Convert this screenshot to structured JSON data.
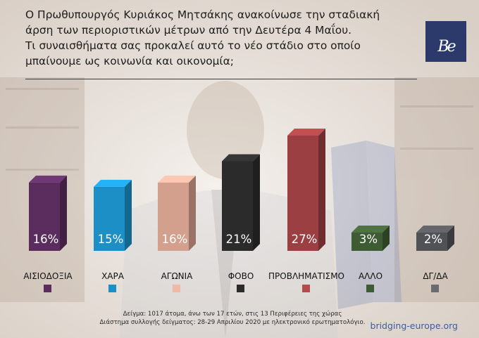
{
  "title_lines": [
    "Ο Πρωθυπουργός Κυριάκος Μητσάκης ανακοίνωσε την σταδιακή",
    "άρση των περιοριστικών μέτρων από την Δευτέρα 4 Μαΐου.",
    "Τι συναισθήματα σας προκαλεί αυτό το νέο στάδιο στο οποίο",
    "μπαίνουμε ως κοινωνία και οικονομία;"
  ],
  "logo_text": "Be",
  "footnote": {
    "line1": "Δείγμα: 1017 άτομα, άνω των 17 ετών, στις 13 Περιφέρειες της χώρας",
    "line2": "Διάστημα συλλογής δείγματος: 28-29 Απριλίου 2020 με ηλεκτρονικό ερωτηματολόγιο."
  },
  "site": "bridging-europe.org",
  "chart_data": {
    "type": "bar",
    "categories": [
      "ΑΙΣΙΟΔΟΞΙΑ",
      "ΧΑΡΑ",
      "ΑΓΩΝΙΑ",
      "ΦΟΒΟ",
      "ΠΡΟΒΛΗΜΑΤΙΣΜΟ",
      "ΑΛΛΟ",
      "ΔΓ/ΔΑ"
    ],
    "values": [
      16,
      15,
      16,
      21,
      27,
      3,
      2
    ],
    "value_labels": [
      "16%",
      "15%",
      "16%",
      "21%",
      "27%",
      "3%",
      "2%"
    ],
    "colors": [
      "#5a2d5e",
      "#1c8fc7",
      "#d4a08e",
      "#2b2b2b",
      "#9c3f42",
      "#3e5c33",
      "#515256"
    ],
    "legend_colors": [
      "#5a2d5e",
      "#1c8fc7",
      "#eeb9a7",
      "#2b2b2b",
      "#b34a4d",
      "#3e5c33",
      "#6a6b6f"
    ],
    "unit": "%",
    "grid": false,
    "legend_placement": "bottom"
  }
}
